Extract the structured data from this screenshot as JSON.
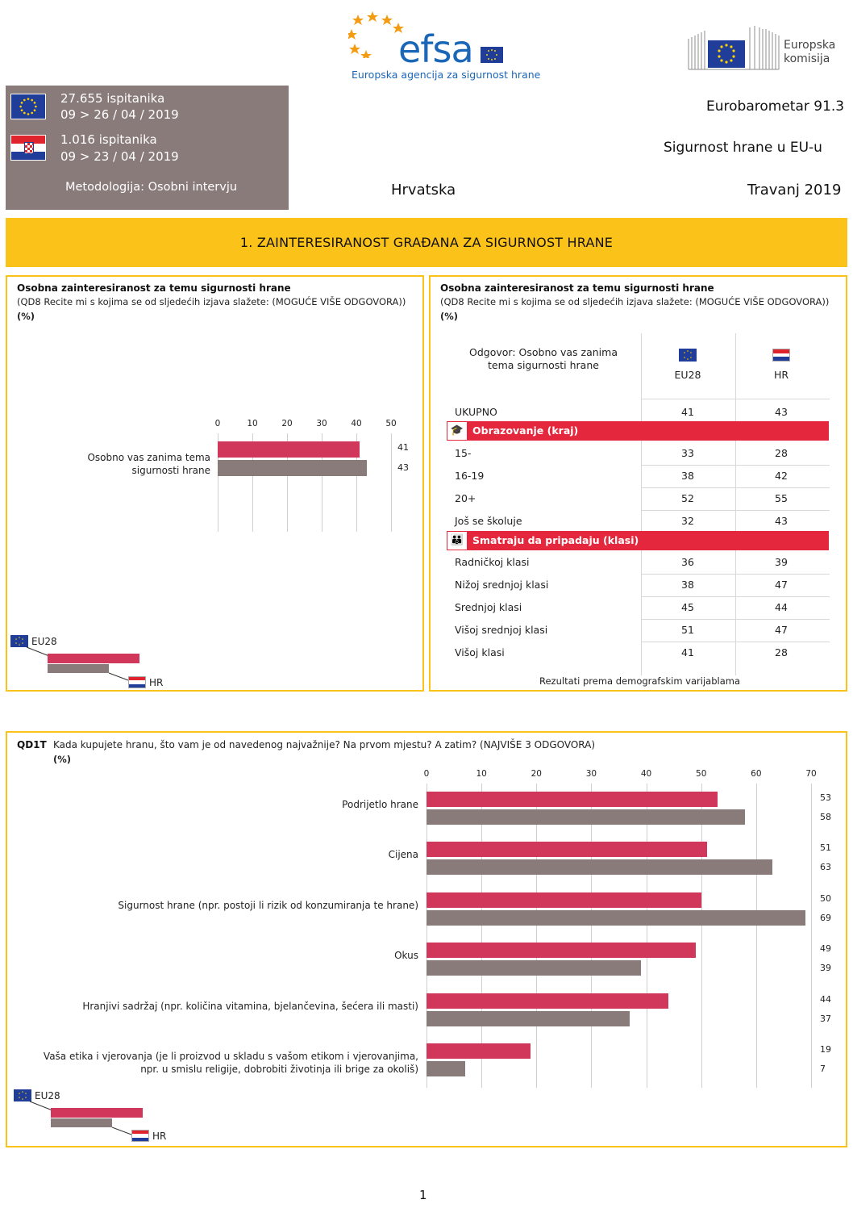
{
  "header": {
    "efsa_word": "efsa",
    "efsa_subtitle": "Europska agencija za sigurnost hrane",
    "ec_line1": "Europska",
    "ec_line2": "komisija",
    "eu_respondents": "27.655 ispitanika",
    "eu_dates": "09 > 26 / 04 / 2019",
    "hr_respondents": "1.016 ispitanika",
    "hr_dates": "09 > 23 / 04 / 2019",
    "methodology": "Metodologija: Osobni intervju",
    "survey": "Eurobarometar 91.3",
    "topic": "Sigurnost hrane u EU-u",
    "country": "Hrvatska",
    "date": "Travanj  2019"
  },
  "banner": {
    "title": "1. ZAINTERESIRANOST GRAĐANA ZA SIGURNOST HRANE"
  },
  "panel_left": {
    "title": "Osobna zainteresiranost za temu sigurnosti hrane",
    "question": "(QD8 Recite mi s kojima se od sljedećih izjava slažete: (MOGUĆE VIŠE ODGOVORA))",
    "unit": "(%)"
  },
  "panel_right": {
    "title": "Osobna zainteresiranost za temu sigurnosti hrane",
    "question": "(QD8 Recite mi s kojima se od sljedećih izjava slažete: (MOGUĆE VIŠE ODGOVORA))",
    "unit": "(%)",
    "answer_header_1": "Odgovor: Osobno vas zanima",
    "answer_header_2": "tema sigurnosti hrane",
    "col_eu": "EU28",
    "col_hr": "HR",
    "total_label": "UKUPNO",
    "total_eu": "41",
    "total_hr": "43",
    "section_education": "Obrazovanje (kraj)",
    "education_rows": [
      {
        "label": "15-",
        "eu": "33",
        "hr": "28"
      },
      {
        "label": "16-19",
        "eu": "38",
        "hr": "42"
      },
      {
        "label": "20+",
        "eu": "52",
        "hr": "55"
      },
      {
        "label": "Još se školuje",
        "eu": "32",
        "hr": "43"
      }
    ],
    "section_class": "Smatraju da pripadaju (klasi)",
    "class_rows": [
      {
        "label": "Radničkoj klasi",
        "eu": "36",
        "hr": "39"
      },
      {
        "label": "Nižoj srednjoj klasi",
        "eu": "38",
        "hr": "47"
      },
      {
        "label": "Srednjoj klasi",
        "eu": "45",
        "hr": "44"
      },
      {
        "label": "Višoj srednjoj klasi",
        "eu": "51",
        "hr": "47"
      },
      {
        "label": "Višoj klasi",
        "eu": "41",
        "hr": "28"
      }
    ],
    "footer": "Rezultati prema demografskim varijablama"
  },
  "panel_bottom": {
    "code": "QD1T",
    "question": "Kada kupujete hranu, što vam je od navedenog najvažnije? Na prvom mjestu? A zatim? (NAJVIŠE 3 ODGOVORA)",
    "unit": "(%)"
  },
  "legend": {
    "eu": "EU28",
    "hr": "HR"
  },
  "colors": {
    "eu": "#d1375a",
    "hr": "#8a7b7b",
    "accent": "#fbc21a",
    "section": "#e4273d"
  },
  "chart_data": [
    {
      "type": "bar",
      "orientation": "horizontal",
      "categories": [
        "Osobno vas zanima tema sigurnosti hrane"
      ],
      "series": [
        {
          "name": "EU28",
          "values": [
            41
          ]
        },
        {
          "name": "HR",
          "values": [
            43
          ]
        }
      ],
      "xlim": [
        0,
        50
      ],
      "ticks": [
        "0",
        "10",
        "20",
        "30",
        "40",
        "50"
      ]
    },
    {
      "type": "bar",
      "orientation": "horizontal",
      "categories": [
        "Podrijetlo hrane",
        "Cijena",
        "Sigurnost hrane (npr. postoji li rizik od konzumiranja te hrane)",
        "Okus",
        "Hranjivi sadržaj (npr. količina vitamina, bjelančevina, šećera ili masti)",
        "Vaša etika i vjerovanja (je li proizvod u skladu s vašom etikom i vjerovanjima, npr. u smislu religije, dobrobiti životinja ili brige za okoliš)"
      ],
      "series": [
        {
          "name": "EU28",
          "values": [
            53,
            51,
            50,
            49,
            44,
            19
          ]
        },
        {
          "name": "HR",
          "values": [
            58,
            63,
            69,
            39,
            37,
            7
          ]
        }
      ],
      "xlim": [
        0,
        70
      ],
      "ticks": [
        "0",
        "10",
        "20",
        "30",
        "40",
        "50",
        "60",
        "70"
      ]
    }
  ],
  "page_number": "1"
}
